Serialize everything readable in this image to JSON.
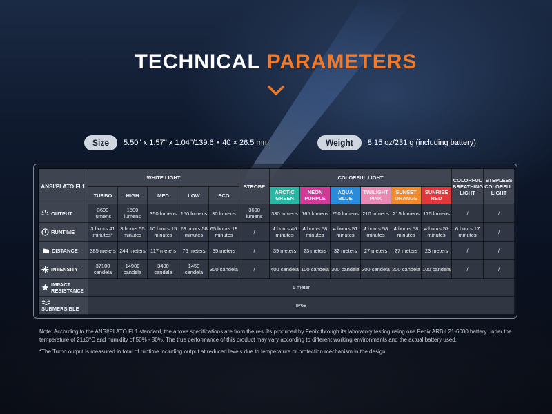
{
  "header": {
    "title_white": "TECHNICAL",
    "title_accent": "PARAMETERS",
    "accent_color": "#f07a2a"
  },
  "specs": {
    "size_label": "Size",
    "size_value": "5.50'' x 1.57'' x 1.04''/139.6 × 40 × 26.5 mm",
    "weight_label": "Weight",
    "weight_value": "8.15 oz/231 g (including battery)"
  },
  "table": {
    "standard_label": "ANSI/PLATO FL1",
    "white_light_label": "WHITE LIGHT",
    "strobe_label": "STROBE",
    "colorful_light_label": "COLORFUL LIGHT",
    "breathing_label": "COLORFUL BREATHING LIGHT",
    "stepless_label": "STEPLESS COLORFUL LIGHT",
    "white_modes": [
      "TURBO",
      "HIGH",
      "MED",
      "LOW",
      "ECO"
    ],
    "color_modes": [
      "ARCTIC GREEN",
      "NEON PURPLE",
      "AQUA BLUE",
      "TWILIGHT PINK",
      "SUNSET ORANGE",
      "SUNRISE RED"
    ],
    "colors": {
      "arctic": "#2bb6a4",
      "neon": "#d23a9a",
      "aqua": "#2a8bd8",
      "twilight": "#e98ab5",
      "sunset": "#f08a2a",
      "sunrise": "#e0383c"
    },
    "rows": {
      "output": {
        "label": "OUTPUT",
        "icon": "light-rays-icon",
        "values": [
          "3600 lumens",
          "1500 lumens",
          "350 lumens",
          "150 lumens",
          "30 lumens",
          "3600 lumens",
          "330 lumens",
          "165 lumens",
          "250 lumens",
          "210 lumens",
          "215 lumens",
          "175 lumens",
          "/",
          "/"
        ]
      },
      "runtime": {
        "label": "RUNTIME",
        "icon": "clock-icon",
        "values": [
          "3 hours 41 minutes*",
          "3 hours 55 minutes",
          "10 hours 15 minutes",
          "28 hours 58 minutes",
          "65 hours 18 minutes",
          "/",
          "4 hours 46 minutes",
          "4 hours 58 minutes",
          "4 hours 51 minutes",
          "4 hours 58 minutes",
          "4 hours 58 minutes",
          "4 hours 57 minutes",
          "6 hours 17 minutes",
          "/"
        ]
      },
      "distance": {
        "label": "DISTANCE",
        "icon": "beam-distance-icon",
        "values": [
          "385 meters",
          "244 meters",
          "117 meters",
          "76 meters",
          "35 meters",
          "/",
          "39 meters",
          "23 meters",
          "32 meters",
          "27 meters",
          "27 meters",
          "23 meters",
          "/",
          "/"
        ]
      },
      "intensity": {
        "label": "INTENSITY",
        "icon": "starburst-icon",
        "values": [
          "37100 candela",
          "14900 candela",
          "3400 candela",
          "1450 candela",
          "300 candela",
          "/",
          "400 candela",
          "100 candela",
          "300 candela",
          "200 candela",
          "200 candela",
          "100 candela",
          "/",
          "/"
        ]
      },
      "impact": {
        "label_line1": "IMPACT",
        "label_line2": "RESISTANCE",
        "icon": "impact-icon",
        "value": "1 meter"
      },
      "submersible": {
        "label": "SUBMERSIBLE",
        "icon": "waves-icon",
        "value": "IP68"
      }
    }
  },
  "notes": {
    "note1": "Note: According to the ANSI/PLATO FL1 standard, the above specifications are from the results produced by Fenix through its laboratory testing using one Fenix ARB-L21-6000 battery under the temperature of 21±3°C and humidity of 50% - 80%. The true performance of this product may vary according to different working environments and the actual battery used.",
    "note2": "*The Turbo output is measured in total of runtime including output at reduced levels due to temperature or protection mechanism in the design."
  }
}
